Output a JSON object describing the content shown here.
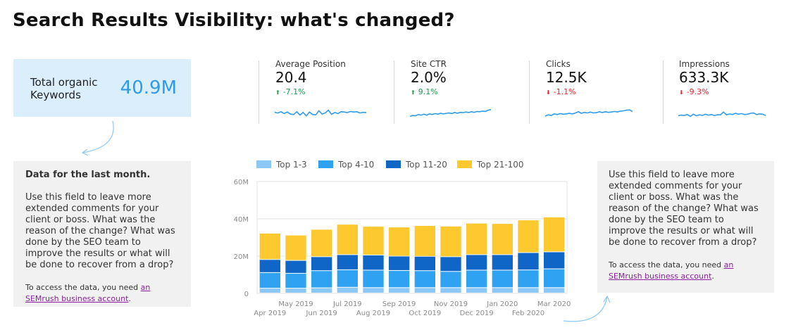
{
  "title": "Search Results Visibility: what's changed?",
  "keywords_card": {
    "label": "Total organic Keywords",
    "value": "40.9M",
    "color": "#2f9bea"
  },
  "metrics": [
    {
      "label": "Average Position",
      "value": "20.4",
      "change": "-7.1%",
      "direction": "up",
      "spark": [
        0.56,
        0.52,
        0.6,
        0.48,
        0.58,
        0.45,
        0.42,
        0.6,
        0.38,
        0.56,
        0.33,
        0.58,
        0.42,
        0.4,
        0.66,
        0.45,
        0.52,
        0.7,
        0.43,
        0.55,
        0.48,
        0.6,
        0.58,
        0.54,
        0.62,
        0.58,
        0.6,
        0.52,
        0.56,
        0.54
      ]
    },
    {
      "label": "Site CTR",
      "value": "2.0%",
      "change": "9.1%",
      "direction": "up",
      "spark": [
        0.3,
        0.36,
        0.34,
        0.42,
        0.38,
        0.44,
        0.38,
        0.46,
        0.42,
        0.48,
        0.44,
        0.5,
        0.46,
        0.5,
        0.52,
        0.48,
        0.55,
        0.5,
        0.56,
        0.54,
        0.58,
        0.55,
        0.6,
        0.56,
        0.62,
        0.6,
        0.64,
        0.62,
        0.7,
        0.74
      ]
    },
    {
      "label": "Clicks",
      "value": "12.5K",
      "change": "-1.1%",
      "direction": "down",
      "spark": [
        0.32,
        0.4,
        0.36,
        0.46,
        0.42,
        0.48,
        0.44,
        0.46,
        0.5,
        0.46,
        0.52,
        0.6,
        0.5,
        0.56,
        0.52,
        0.58,
        0.52,
        0.54,
        0.6,
        0.55,
        0.6,
        0.56,
        0.58,
        0.62,
        0.58,
        0.64,
        0.66,
        0.7,
        0.72,
        0.62
      ]
    },
    {
      "label": "Impressions",
      "value": "633.3K",
      "change": "-9.3%",
      "direction": "down",
      "spark": [
        0.34,
        0.38,
        0.36,
        0.42,
        0.3,
        0.44,
        0.34,
        0.4,
        0.36,
        0.44,
        0.38,
        0.42,
        0.36,
        0.4,
        0.4,
        0.58,
        0.4,
        0.46,
        0.42,
        0.5,
        0.44,
        0.48,
        0.42,
        0.44,
        0.5,
        0.52,
        0.42,
        0.46,
        0.44,
        0.36
      ]
    }
  ],
  "colors": {
    "up": "#1c9a4e",
    "down": "#e8222c",
    "sparkline": "#2f9bea"
  },
  "comment_left": {
    "heading": "Data for the last month.",
    "body": "Use this field to leave more extended comments for your client or boss. What was the reason of the change? What was done by the SEO team to improve the results or what will be done to recover from a drop?",
    "access_prefix": "To access the data, you need ",
    "access_link": "an SEMrush business account",
    "access_suffix": "."
  },
  "comment_right": {
    "body": "Use this field to leave more extended comments for your client or boss. What was the reason of the change? What was done by the SEO team to improve the results or what will be done to recover from a drop?",
    "access_prefix": "To access the data, you need ",
    "access_link": "an SEMrush business account",
    "access_suffix": "."
  },
  "chart_data": {
    "type": "bar",
    "stacked": true,
    "categories": [
      "Apr 2019",
      "May 2019",
      "Jun 2019",
      "Jul 2019",
      "Aug 2019",
      "Sep 2019",
      "Oct 2019",
      "Nov 2019",
      "Dec 2019",
      "Jan 2020",
      "Feb 2020",
      "Mar 2020"
    ],
    "series": [
      {
        "name": "Top 1-3",
        "color": "#8cc8f5",
        "values": [
          2.6,
          2.6,
          2.8,
          3.1,
          2.9,
          2.9,
          2.9,
          2.9,
          2.9,
          2.9,
          2.9,
          2.9
        ]
      },
      {
        "name": "Top 4-10",
        "color": "#2fa3f1",
        "values": [
          8.4,
          8.0,
          9.2,
          9.4,
          9.4,
          9.2,
          9.1,
          8.7,
          9.4,
          9.4,
          9.5,
          10.1
        ]
      },
      {
        "name": "Top 11-20",
        "color": "#0f66c6",
        "values": [
          7.0,
          6.9,
          7.5,
          8.1,
          8.1,
          7.7,
          7.7,
          7.9,
          8.3,
          8.3,
          9.3,
          9.1
        ]
      },
      {
        "name": "Top 21-100",
        "color": "#fdc92f",
        "values": [
          14.1,
          13.6,
          14.7,
          16.3,
          15.4,
          15.6,
          16.5,
          16.4,
          16.9,
          16.7,
          17.5,
          18.7
        ]
      }
    ],
    "y_ticks": [
      "0",
      "20M",
      "40M",
      "60M"
    ],
    "ylim": [
      0,
      60
    ],
    "y_unit": "M",
    "grid": true,
    "legend_position": "top"
  }
}
